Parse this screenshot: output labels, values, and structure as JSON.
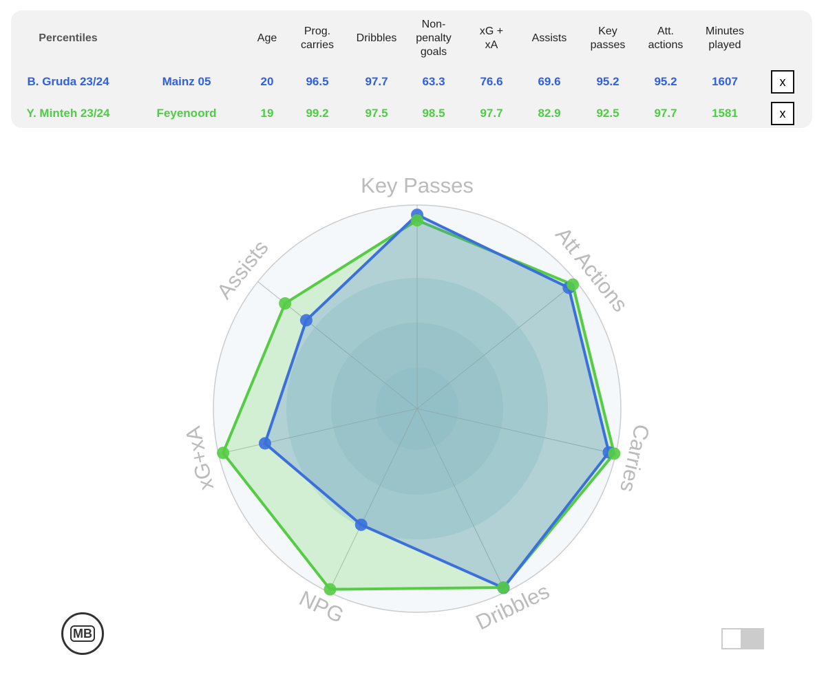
{
  "table": {
    "title": "Percentiles",
    "columns": [
      "Age",
      "Prog.\ncarries",
      "Dribbles",
      "Non-\npenalty\ngoals",
      "xG +\nxA",
      "Assists",
      "Key\npasses",
      "Att.\nactions",
      "Minutes\nplayed"
    ],
    "rows": [
      {
        "player": "B. Gruda 23/24",
        "team": "Mainz 05",
        "values": [
          20,
          96.5,
          97.7,
          63.3,
          76.6,
          69.6,
          95.2,
          95.2,
          1607
        ],
        "color": "#2f5fe3",
        "button": "x"
      },
      {
        "player": "Y. Minteh 23/24",
        "team": "Feyenoord",
        "values": [
          19,
          99.2,
          97.5,
          98.5,
          97.7,
          82.9,
          92.5,
          97.7,
          1581
        ],
        "color": "#4fcc45",
        "button": "x"
      }
    ]
  },
  "chart_data": {
    "type": "radar",
    "categories": [
      "Key Passes",
      "Att Actions",
      "Carries",
      "Dribbles",
      "NPG",
      "xG+xA",
      "Assists"
    ],
    "rlim": [
      0,
      100
    ],
    "series": [
      {
        "color": "#3a6fdc",
        "values": [
          95.2,
          95.2,
          96.5,
          97.7,
          63.3,
          76.6,
          69.6
        ]
      },
      {
        "color": "#55cc44",
        "values": [
          92.5,
          97.7,
          99.2,
          97.5,
          98.5,
          97.7,
          82.9
        ]
      }
    ]
  },
  "logo": "MB"
}
